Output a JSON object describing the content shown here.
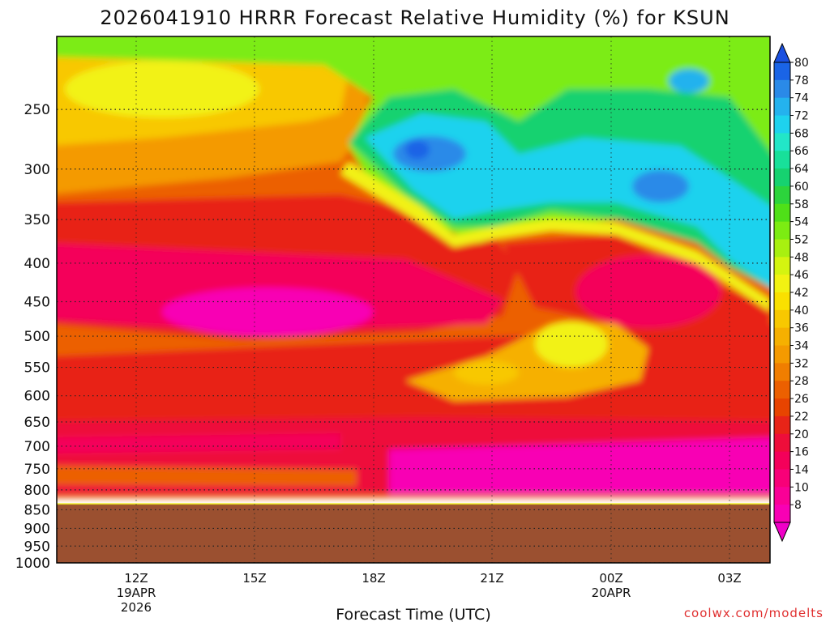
{
  "chart_data": {
    "type": "heatmap",
    "title": "2026041910 HRRR Forecast Relative Humidity (%) for KSUN",
    "xlabel": "Forecast Time (UTC)",
    "ylabel": "",
    "y_scale": "log",
    "y_inverted": true,
    "y_range_hPa": [
      1000,
      200
    ],
    "y_ticks": [
      "250",
      "300",
      "350",
      "400",
      "450",
      "500",
      "550",
      "600",
      "650",
      "700",
      "750",
      "800",
      "850",
      "900",
      "950",
      "1000"
    ],
    "x_ticks": [
      {
        "label": "12Z",
        "sub1": "19APR",
        "sub2": "2026"
      },
      {
        "label": "15Z",
        "sub1": "",
        "sub2": ""
      },
      {
        "label": "18Z",
        "sub1": "",
        "sub2": ""
      },
      {
        "label": "21Z",
        "sub1": "",
        "sub2": ""
      },
      {
        "label": "00Z",
        "sub1": "20APR",
        "sub2": ""
      },
      {
        "label": "03Z",
        "sub1": "",
        "sub2": ""
      }
    ],
    "colorbar": {
      "labels": [
        "80",
        "78",
        "74",
        "72",
        "68",
        "66",
        "64",
        "60",
        "58",
        "54",
        "52",
        "48",
        "46",
        "42",
        "40",
        "36",
        "34",
        "32",
        "28",
        "26",
        "22",
        "20",
        "16",
        "14",
        "10",
        "8"
      ],
      "colors": [
        "#1a64e6",
        "#2a8ae8",
        "#24b2ee",
        "#1ed2ee",
        "#22e6c8",
        "#18e09a",
        "#16d270",
        "#2cd43c",
        "#4fe018",
        "#7cec12",
        "#a8f010",
        "#d4f410",
        "#f2f212",
        "#fae000",
        "#f8c800",
        "#f6b000",
        "#f49a00",
        "#f07e00",
        "#ec6000",
        "#e84400",
        "#e82418",
        "#ee0e3a",
        "#f4005a",
        "#f80078",
        "#fa0096",
        "#f800b4"
      ],
      "max_arrow_color": "#1a50e0",
      "min_arrow_color": "#f000c8"
    },
    "ground_color": "#9b5030",
    "ground_level_hPa": 835,
    "fields": [
      {
        "region": "upper-left",
        "rh": "36-46",
        "pressure": "200-300",
        "time": "10Z-17Z"
      },
      {
        "region": "upper-right",
        "rh": "64-78",
        "pressure": "250-400",
        "time": "19Z-03Z"
      },
      {
        "region": "mid-level",
        "rh": "8-20",
        "pressure": "400-550",
        "time": "10Z-03Z"
      },
      {
        "region": "mid-right",
        "rh": "36-46",
        "pressure": "520-620",
        "time": "21Z-00Z"
      },
      {
        "region": "lower",
        "rh": "10-26",
        "pressure": "650-830",
        "time": "10Z-03Z"
      }
    ]
  },
  "watermark": "coolwx.com/modelts"
}
